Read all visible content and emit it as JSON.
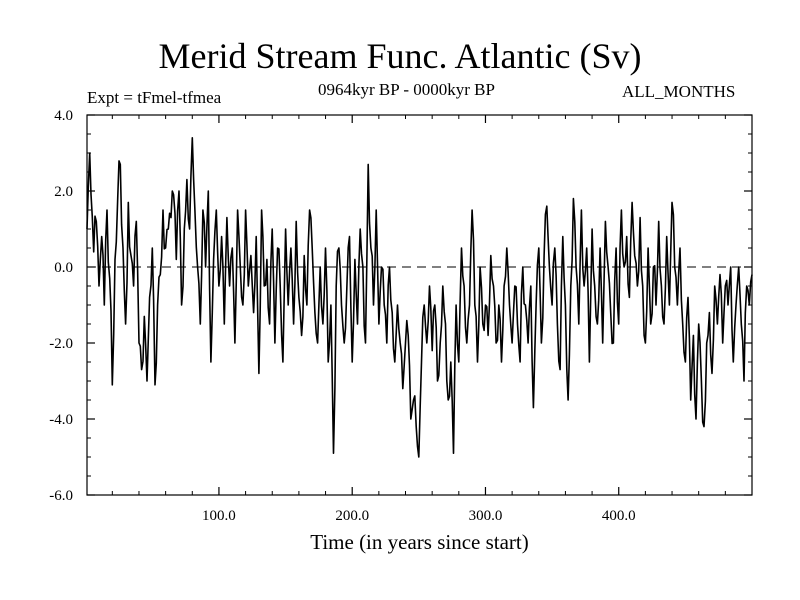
{
  "chart_data": {
    "type": "line",
    "title": "Merid Stream Func. Atlantic (Sv)",
    "subtitle": "0964kyr BP - 0000kyr BP",
    "experiment_label": "Expt = tFmel-tfmea",
    "period_label": "ALL_MONTHS",
    "xlabel": "Time (in years since start)",
    "ylabel": "",
    "xlim": [
      1,
      500
    ],
    "ylim": [
      -6.0,
      4.0
    ],
    "x_ticks": [
      100,
      200,
      300,
      400
    ],
    "x_tick_labels": [
      "100.0",
      "200.0",
      "300.0",
      "400.0"
    ],
    "y_ticks": [
      -6,
      -4,
      -2,
      0,
      2,
      4
    ],
    "y_tick_labels": [
      "-6.0",
      "-4.0",
      "-2.0",
      "0.0",
      "2.0",
      "4.0"
    ],
    "zero_line": true,
    "grid": false,
    "series": [
      {
        "name": "Expt = tFmel-tfmea",
        "anchors": [
          [
            1,
            1.0
          ],
          [
            3,
            3.0
          ],
          [
            6,
            0.4
          ],
          [
            8,
            1.2
          ],
          [
            10,
            -0.5
          ],
          [
            12,
            0.8
          ],
          [
            14,
            -1.0
          ],
          [
            16,
            1.5
          ],
          [
            18,
            -0.3
          ],
          [
            20,
            -3.1
          ],
          [
            22,
            0.2
          ],
          [
            24,
            1.8
          ],
          [
            26,
            2.7
          ],
          [
            28,
            0.5
          ],
          [
            30,
            -1.5
          ],
          [
            32,
            1.7
          ],
          [
            34,
            0.3
          ],
          [
            36,
            -0.5
          ],
          [
            38,
            1.2
          ],
          [
            40,
            -2.0
          ],
          [
            42,
            -2.7
          ],
          [
            44,
            -1.3
          ],
          [
            46,
            -3.0
          ],
          [
            48,
            -0.8
          ],
          [
            50,
            0.5
          ],
          [
            52,
            -3.1
          ],
          [
            54,
            -1.0
          ],
          [
            56,
            -0.2
          ],
          [
            58,
            1.5
          ],
          [
            60,
            0.5
          ],
          [
            62,
            1.0
          ],
          [
            64,
            1.3
          ],
          [
            66,
            1.9
          ],
          [
            68,
            0.2
          ],
          [
            70,
            2.0
          ],
          [
            72,
            -1.0
          ],
          [
            74,
            1.0
          ],
          [
            76,
            2.3
          ],
          [
            78,
            1.0
          ],
          [
            80,
            3.4
          ],
          [
            82,
            1.5
          ],
          [
            84,
            0.0
          ],
          [
            86,
            -1.5
          ],
          [
            88,
            1.5
          ],
          [
            90,
            0.0
          ],
          [
            92,
            2.0
          ],
          [
            94,
            -2.5
          ],
          [
            96,
            0.2
          ],
          [
            98,
            1.5
          ],
          [
            100,
            -0.5
          ],
          [
            102,
            0.8
          ],
          [
            104,
            -1.5
          ],
          [
            106,
            1.3
          ],
          [
            108,
            -0.5
          ],
          [
            110,
            0.5
          ],
          [
            112,
            -2.0
          ],
          [
            114,
            1.5
          ],
          [
            116,
            0.0
          ],
          [
            118,
            -1.0
          ],
          [
            120,
            1.5
          ],
          [
            122,
            -0.5
          ],
          [
            124,
            0.3
          ],
          [
            126,
            -1.2
          ],
          [
            128,
            0.8
          ],
          [
            130,
            -2.8
          ],
          [
            132,
            1.5
          ],
          [
            134,
            -0.5
          ],
          [
            136,
            0.2
          ],
          [
            138,
            -1.5
          ],
          [
            140,
            1.0
          ],
          [
            142,
            -2.0
          ],
          [
            144,
            0.5
          ],
          [
            146,
            -0.5
          ],
          [
            148,
            -2.5
          ],
          [
            150,
            1.0
          ],
          [
            152,
            -1.0
          ],
          [
            154,
            0.5
          ],
          [
            156,
            -1.5
          ],
          [
            158,
            1.2
          ],
          [
            160,
            -0.8
          ],
          [
            162,
            -1.8
          ],
          [
            164,
            0.3
          ],
          [
            166,
            -1.0
          ],
          [
            168,
            1.5
          ],
          [
            170,
            0.5
          ],
          [
            172,
            -1.2
          ],
          [
            174,
            -2.0
          ],
          [
            176,
            0.0
          ],
          [
            178,
            -1.5
          ],
          [
            180,
            0.5
          ],
          [
            182,
            -2.5
          ],
          [
            184,
            -1.0
          ],
          [
            186,
            -4.9
          ],
          [
            188,
            -0.5
          ],
          [
            190,
            0.5
          ],
          [
            192,
            -1.0
          ],
          [
            194,
            -2.0
          ],
          [
            196,
            -0.5
          ],
          [
            198,
            0.8
          ],
          [
            200,
            -2.5
          ],
          [
            202,
            0.2
          ],
          [
            204,
            -1.5
          ],
          [
            206,
            1.0
          ],
          [
            208,
            0.0
          ],
          [
            210,
            -2.0
          ],
          [
            212,
            2.7
          ],
          [
            214,
            0.5
          ],
          [
            216,
            -1.0
          ],
          [
            218,
            1.5
          ],
          [
            220,
            -1.5
          ],
          [
            222,
            0.0
          ],
          [
            224,
            -1.0
          ],
          [
            226,
            -2.0
          ],
          [
            228,
            0.0
          ],
          [
            230,
            -1.2
          ],
          [
            232,
            -2.5
          ],
          [
            234,
            -1.0
          ],
          [
            236,
            -2.0
          ],
          [
            238,
            -3.2
          ],
          [
            240,
            -2.0
          ],
          [
            242,
            -1.8
          ],
          [
            244,
            -4.0
          ],
          [
            246,
            -3.5
          ],
          [
            248,
            -4.2
          ],
          [
            250,
            -5.0
          ],
          [
            252,
            -2.5
          ],
          [
            254,
            -1.0
          ],
          [
            256,
            -2.0
          ],
          [
            258,
            -0.5
          ],
          [
            260,
            -2.2
          ],
          [
            262,
            -1.0
          ],
          [
            264,
            -3.0
          ],
          [
            266,
            -2.0
          ],
          [
            268,
            -0.5
          ],
          [
            270,
            -1.5
          ],
          [
            272,
            -3.5
          ],
          [
            274,
            -2.5
          ],
          [
            276,
            -4.9
          ],
          [
            278,
            -1.0
          ],
          [
            280,
            -2.5
          ],
          [
            282,
            0.5
          ],
          [
            284,
            -0.5
          ],
          [
            286,
            -2.0
          ],
          [
            288,
            -1.0
          ],
          [
            290,
            1.5
          ],
          [
            292,
            -1.0
          ],
          [
            294,
            -2.5
          ],
          [
            296,
            0.0
          ],
          [
            298,
            -1.5
          ],
          [
            300,
            -1.0
          ],
          [
            302,
            -1.8
          ],
          [
            304,
            0.3
          ],
          [
            306,
            -0.5
          ],
          [
            308,
            -2.0
          ],
          [
            310,
            -1.0
          ],
          [
            312,
            -2.5
          ],
          [
            314,
            -0.5
          ],
          [
            316,
            0.5
          ],
          [
            318,
            -1.0
          ],
          [
            320,
            -2.0
          ],
          [
            322,
            -0.5
          ],
          [
            324,
            -1.5
          ],
          [
            326,
            -2.5
          ],
          [
            328,
            0.0
          ],
          [
            330,
            -1.0
          ],
          [
            332,
            -2.0
          ],
          [
            334,
            -0.5
          ],
          [
            336,
            -3.7
          ],
          [
            338,
            -1.0
          ],
          [
            340,
            0.5
          ],
          [
            342,
            -2.0
          ],
          [
            344,
            0.3
          ],
          [
            346,
            1.6
          ],
          [
            348,
            0.0
          ],
          [
            350,
            -1.0
          ],
          [
            352,
            0.5
          ],
          [
            354,
            -1.5
          ],
          [
            356,
            -2.7
          ],
          [
            358,
            0.8
          ],
          [
            360,
            -1.0
          ],
          [
            362,
            -3.5
          ],
          [
            364,
            -0.5
          ],
          [
            366,
            1.8
          ],
          [
            368,
            0.0
          ],
          [
            370,
            -1.5
          ],
          [
            372,
            1.5
          ],
          [
            374,
            -0.5
          ],
          [
            376,
            0.5
          ],
          [
            378,
            -2.5
          ],
          [
            380,
            1.0
          ],
          [
            382,
            -0.5
          ],
          [
            384,
            -1.5
          ],
          [
            386,
            0.5
          ],
          [
            388,
            -2.0
          ],
          [
            390,
            1.2
          ],
          [
            392,
            0.0
          ],
          [
            394,
            -1.2
          ],
          [
            396,
            -2.0
          ],
          [
            398,
            0.5
          ],
          [
            400,
            -1.5
          ],
          [
            402,
            1.5
          ],
          [
            404,
            0.0
          ],
          [
            406,
            0.8
          ],
          [
            408,
            -0.8
          ],
          [
            410,
            1.7
          ],
          [
            412,
            0.3
          ],
          [
            414,
            -0.5
          ],
          [
            416,
            1.3
          ],
          [
            418,
            -0.5
          ],
          [
            420,
            -2.0
          ],
          [
            422,
            0.5
          ],
          [
            424,
            -1.5
          ],
          [
            426,
            0.0
          ],
          [
            428,
            -1.0
          ],
          [
            430,
            1.2
          ],
          [
            432,
            -0.5
          ],
          [
            434,
            -1.5
          ],
          [
            436,
            0.8
          ],
          [
            438,
            -1.0
          ],
          [
            440,
            1.7
          ],
          [
            442,
            0.0
          ],
          [
            444,
            -1.0
          ],
          [
            446,
            0.5
          ],
          [
            448,
            -1.5
          ],
          [
            450,
            -2.5
          ],
          [
            452,
            -0.8
          ],
          [
            454,
            -3.5
          ],
          [
            456,
            -1.8
          ],
          [
            458,
            -4.0
          ],
          [
            460,
            -1.5
          ],
          [
            462,
            -3.0
          ],
          [
            464,
            -4.2
          ],
          [
            466,
            -2.0
          ],
          [
            468,
            -1.2
          ],
          [
            470,
            -2.8
          ],
          [
            472,
            -0.5
          ],
          [
            474,
            -1.5
          ],
          [
            476,
            -0.2
          ],
          [
            478,
            -2.0
          ],
          [
            480,
            -0.5
          ],
          [
            482,
            -1.0
          ],
          [
            484,
            0.0
          ],
          [
            486,
            -2.5
          ],
          [
            488,
            -1.0
          ],
          [
            490,
            0.0
          ],
          [
            492,
            -1.5
          ],
          [
            494,
            -3.0
          ],
          [
            496,
            -0.5
          ],
          [
            498,
            -1.0
          ],
          [
            500,
            -0.2
          ]
        ]
      }
    ]
  }
}
